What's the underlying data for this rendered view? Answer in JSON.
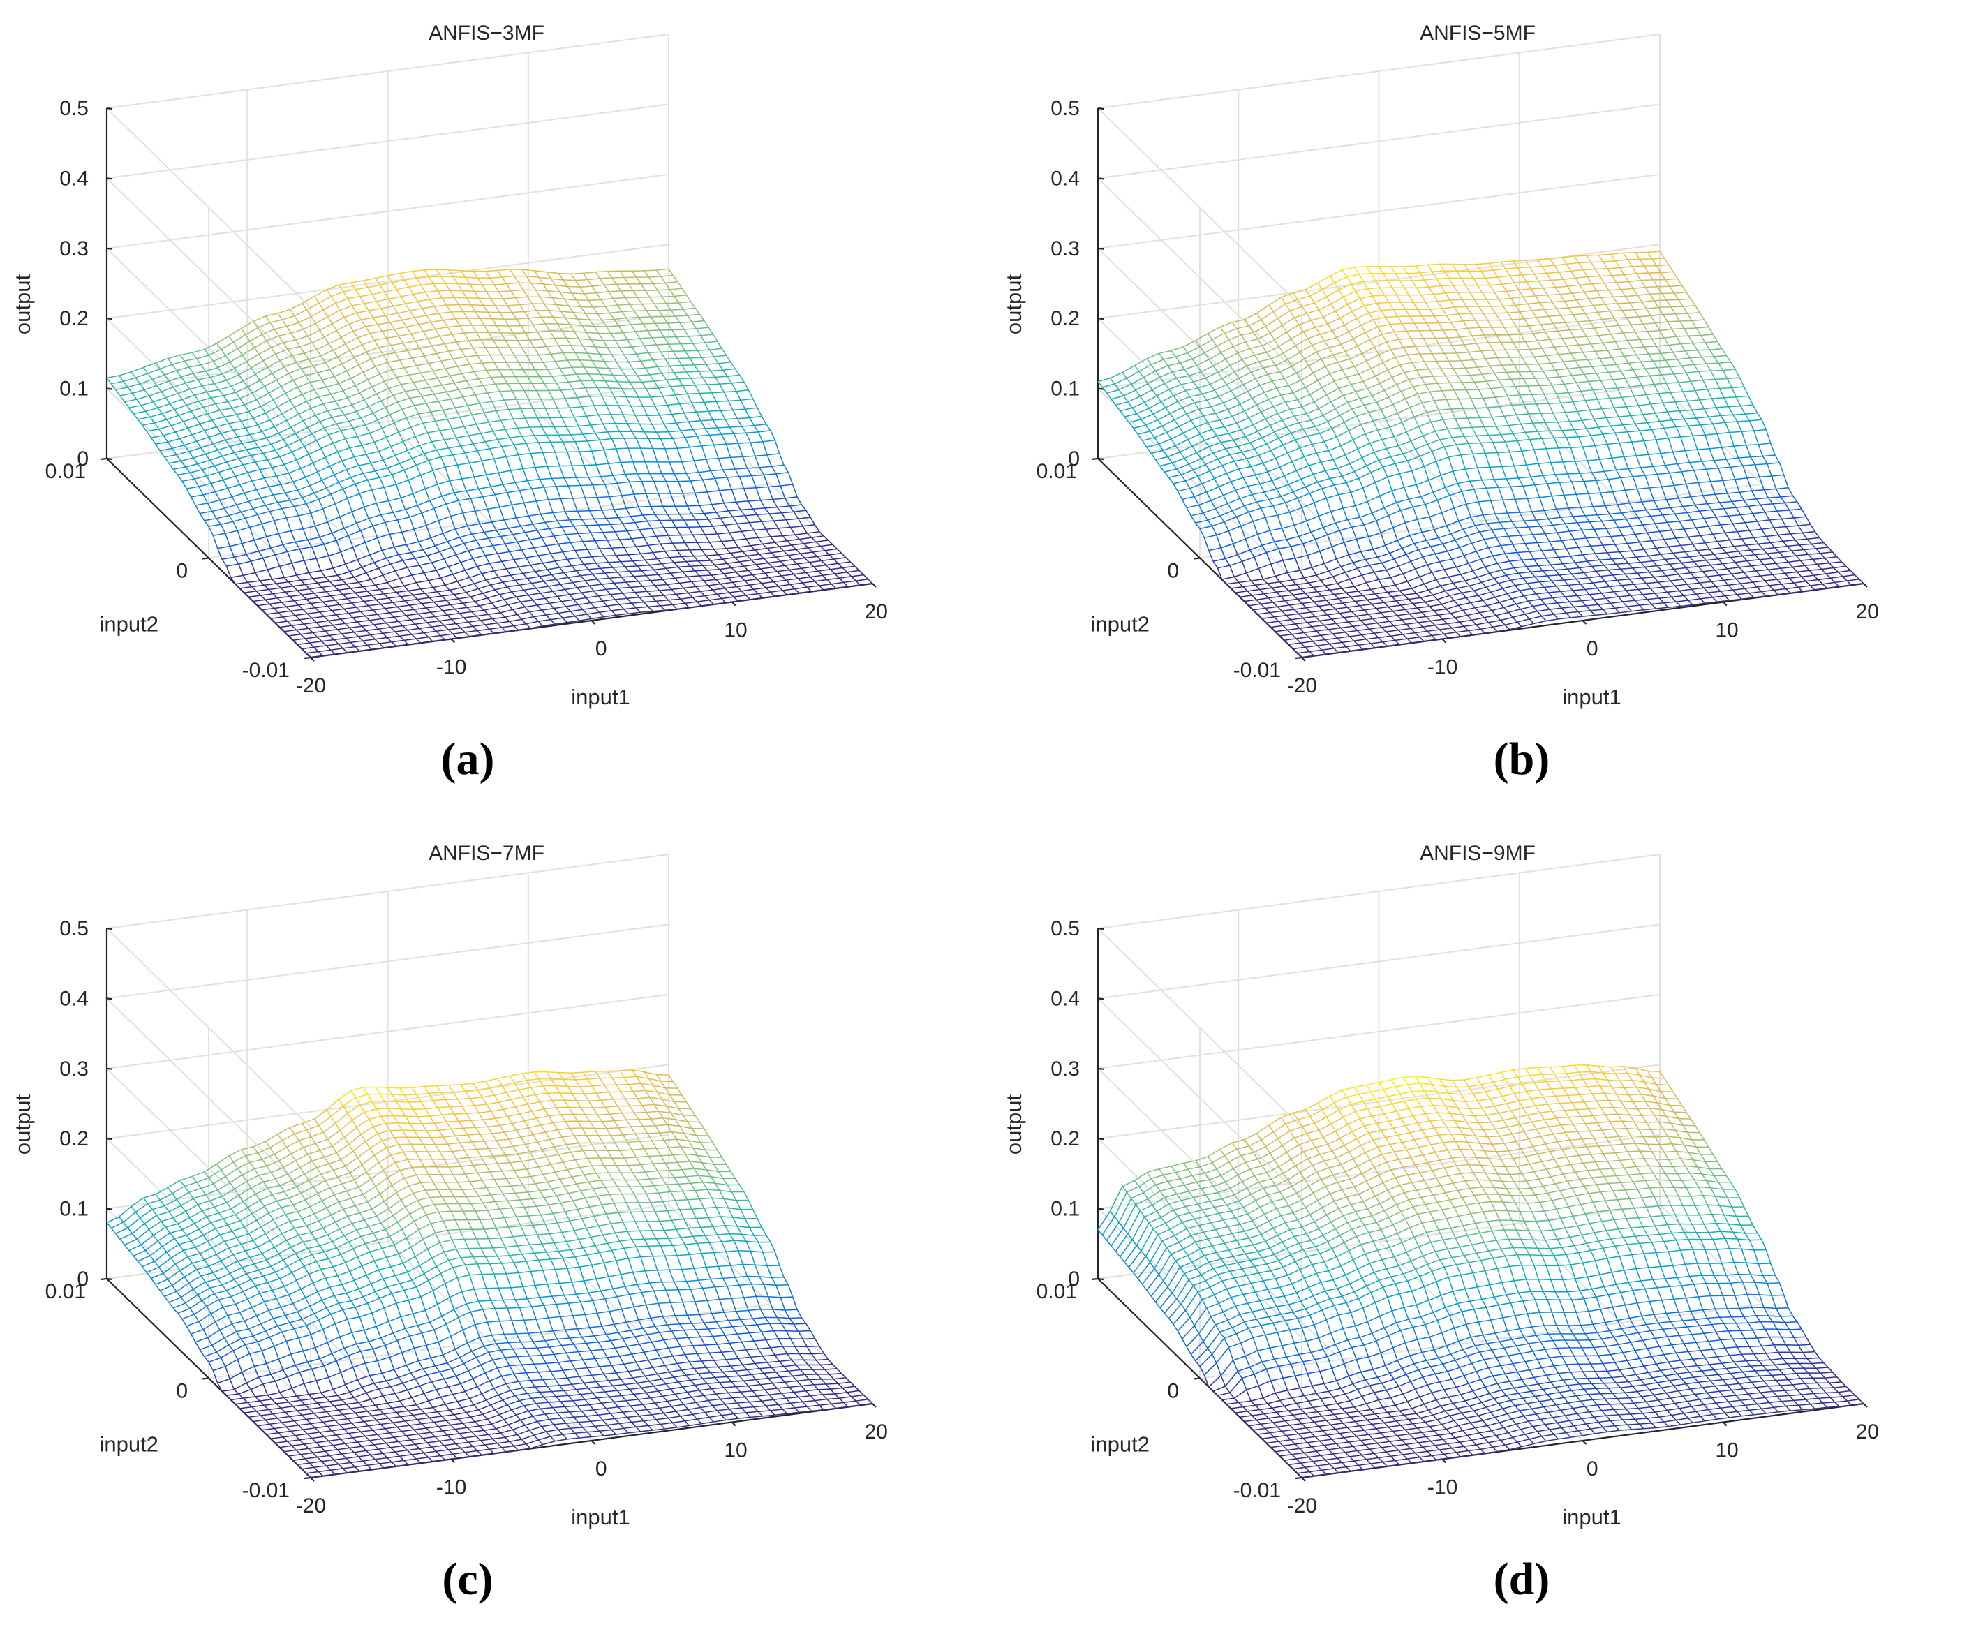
{
  "figure": {
    "panel_labels": [
      "(a)",
      "(b)",
      "(c)",
      "(d)"
    ]
  },
  "chart_data": [
    {
      "type": "surface",
      "title": "ANFIS−3MF",
      "xlabel": "input1",
      "ylabel": "input2",
      "zlabel": "output",
      "x_ticks": [
        "-20",
        "-10",
        "0",
        "10",
        "20"
      ],
      "y_ticks": [
        "-0.01",
        "0",
        "0.01"
      ],
      "z_ticks": [
        "0",
        "0.1",
        "0.2",
        "0.3",
        "0.4",
        "0.5"
      ],
      "xlim": [
        -20,
        20
      ],
      "ylim": [
        -0.01,
        0.01
      ],
      "zlim": [
        0,
        0.5
      ],
      "grid": true,
      "colormap": "parula",
      "x_profile": [
        [
          -20,
          0.115
        ],
        [
          -14,
          0.135
        ],
        [
          -8,
          0.175
        ],
        [
          -3,
          0.205
        ],
        [
          2,
          0.21
        ],
        [
          8,
          0.195
        ],
        [
          14,
          0.175
        ],
        [
          20,
          0.165
        ]
      ],
      "y_profile": [
        [
          -0.01,
          0.0
        ],
        [
          -0.006,
          0.015
        ],
        [
          -0.003,
          0.06
        ],
        [
          -0.0015,
          0.11
        ],
        [
          0.0,
          0.155
        ],
        [
          0.003,
          0.185
        ],
        [
          0.007,
          0.195
        ],
        [
          0.01,
          0.198
        ]
      ]
    },
    {
      "type": "surface",
      "title": "ANFIS−5MF",
      "xlabel": "input1",
      "ylabel": "input2",
      "zlabel": "output",
      "x_ticks": [
        "-20",
        "-10",
        "0",
        "10",
        "20"
      ],
      "y_ticks": [
        "-0.01",
        "0",
        "0.01"
      ],
      "z_ticks": [
        "0",
        "0.1",
        "0.2",
        "0.3",
        "0.4",
        "0.5"
      ],
      "xlim": [
        -20,
        20
      ],
      "ylim": [
        -0.01,
        0.01
      ],
      "zlim": [
        0,
        0.5
      ],
      "grid": true,
      "colormap": "parula",
      "x_profile": [
        [
          -20,
          0.11
        ],
        [
          -15,
          0.14
        ],
        [
          -10,
          0.17
        ],
        [
          -6,
          0.2
        ],
        [
          -2,
          0.225
        ],
        [
          3,
          0.215
        ],
        [
          8,
          0.205
        ],
        [
          13,
          0.2
        ],
        [
          17,
          0.195
        ],
        [
          20,
          0.19
        ]
      ],
      "y_profile": [
        [
          -0.01,
          0.0
        ],
        [
          -0.006,
          0.015
        ],
        [
          -0.003,
          0.06
        ],
        [
          -0.0015,
          0.11
        ],
        [
          0.0,
          0.155
        ],
        [
          0.003,
          0.185
        ],
        [
          0.007,
          0.195
        ],
        [
          0.01,
          0.198
        ]
      ]
    },
    {
      "type": "surface",
      "title": "ANFIS−7MF",
      "xlabel": "input1",
      "ylabel": "input2",
      "zlabel": "output",
      "x_ticks": [
        "-20",
        "-10",
        "0",
        "10",
        "20"
      ],
      "y_ticks": [
        "-0.01",
        "0",
        "0.01"
      ],
      "z_ticks": [
        "0",
        "0.1",
        "0.2",
        "0.3",
        "0.4",
        "0.5"
      ],
      "xlim": [
        -20,
        20
      ],
      "ylim": [
        -0.01,
        0.01
      ],
      "zlim": [
        0,
        0.5
      ],
      "grid": true,
      "colormap": "parula",
      "x_profile": [
        [
          -20,
          0.08
        ],
        [
          -17,
          0.11
        ],
        [
          -14,
          0.13
        ],
        [
          -10,
          0.16
        ],
        [
          -6,
          0.185
        ],
        [
          -2,
          0.225
        ],
        [
          2,
          0.215
        ],
        [
          6,
          0.21
        ],
        [
          10,
          0.215
        ],
        [
          14,
          0.205
        ],
        [
          17,
          0.2
        ],
        [
          20,
          0.185
        ]
      ],
      "y_profile": [
        [
          -0.01,
          0.0
        ],
        [
          -0.006,
          0.015
        ],
        [
          -0.003,
          0.06
        ],
        [
          -0.0015,
          0.11
        ],
        [
          0.0,
          0.155
        ],
        [
          0.003,
          0.185
        ],
        [
          0.007,
          0.195
        ],
        [
          0.01,
          0.198
        ]
      ]
    },
    {
      "type": "surface",
      "title": "ANFIS−9MF",
      "xlabel": "input1",
      "ylabel": "input2",
      "zlabel": "output",
      "x_ticks": [
        "-20",
        "-10",
        "0",
        "10",
        "20"
      ],
      "y_ticks": [
        "-0.01",
        "0",
        "0.01"
      ],
      "z_ticks": [
        "0",
        "0.1",
        "0.2",
        "0.3",
        "0.4",
        "0.5"
      ],
      "xlim": [
        -20,
        20
      ],
      "ylim": [
        -0.01,
        0.01
      ],
      "zlim": [
        0,
        0.5
      ],
      "grid": true,
      "colormap": "parula",
      "x_profile": [
        [
          -20,
          0.07
        ],
        [
          -18,
          0.13
        ],
        [
          -16,
          0.145
        ],
        [
          -13,
          0.15
        ],
        [
          -10,
          0.17
        ],
        [
          -6,
          0.2
        ],
        [
          -2,
          0.225
        ],
        [
          2,
          0.23
        ],
        [
          6,
          0.215
        ],
        [
          10,
          0.22
        ],
        [
          14,
          0.215
        ],
        [
          17,
          0.205
        ],
        [
          20,
          0.19
        ]
      ],
      "y_profile": [
        [
          -0.01,
          0.0
        ],
        [
          -0.006,
          0.015
        ],
        [
          -0.003,
          0.06
        ],
        [
          -0.0015,
          0.11
        ],
        [
          0.0,
          0.155
        ],
        [
          0.003,
          0.185
        ],
        [
          0.007,
          0.195
        ],
        [
          0.01,
          0.198
        ]
      ]
    }
  ]
}
